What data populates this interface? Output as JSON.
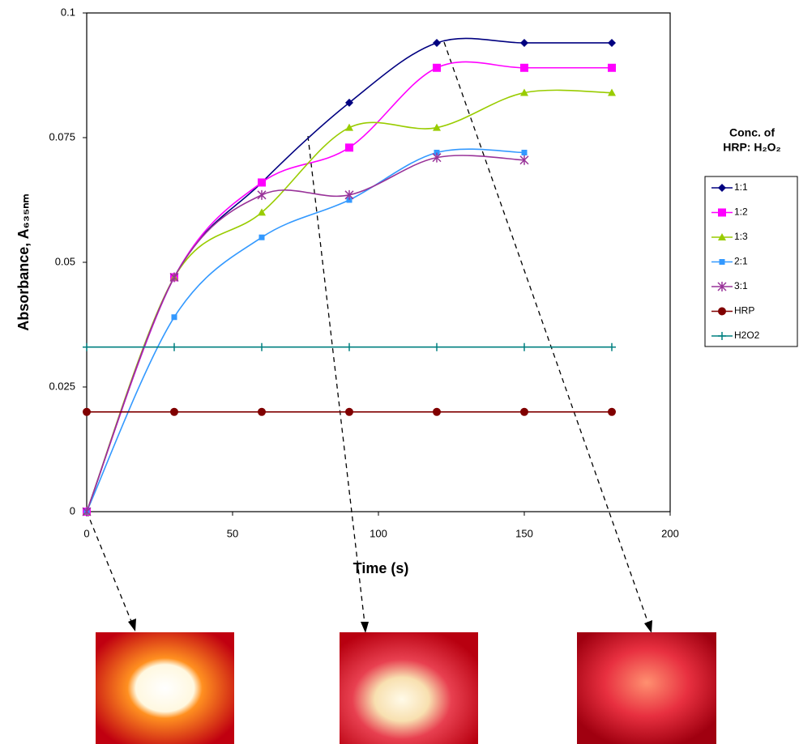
{
  "chart_data": {
    "type": "line",
    "x_label": "Time (s)",
    "y_label": "Absorbance, A₆₃₅ₙₘ",
    "legend_title": [
      "Conc. of",
      "HRP: H₂O₂"
    ],
    "x": [
      0,
      30,
      60,
      90,
      120,
      150,
      180
    ],
    "xlim": [
      0,
      200
    ],
    "xticks": [
      0,
      50,
      100,
      150,
      200
    ],
    "ylim": [
      0,
      0.1
    ],
    "yticks": [
      0,
      0.025,
      0.05,
      0.075,
      0.1
    ],
    "grid": false,
    "legend": "right",
    "series": [
      {
        "name": "1:1",
        "color": "#000080",
        "marker": "diamond",
        "smooth": true,
        "values": [
          0,
          0.047,
          0.066,
          0.082,
          0.094,
          0.094,
          0.094
        ]
      },
      {
        "name": "1:2",
        "color": "#ff00ff",
        "marker": "square",
        "smooth": true,
        "values": [
          0,
          0.047,
          0.066,
          0.073,
          0.089,
          0.089,
          0.089
        ]
      },
      {
        "name": "1:3",
        "color": "#99cc00",
        "marker": "triangle",
        "smooth": true,
        "values": [
          0,
          0.047,
          0.06,
          0.077,
          0.077,
          0.084,
          0.084
        ]
      },
      {
        "name": "2:1",
        "color": "#3399ff",
        "marker": "small-square",
        "smooth": true,
        "values": [
          0,
          0.039,
          0.055,
          0.0625,
          0.072,
          0.072,
          null
        ]
      },
      {
        "name": "3:1",
        "color": "#993399",
        "marker": "star",
        "smooth": true,
        "values": [
          0,
          0.047,
          0.0635,
          0.0635,
          0.071,
          0.0705,
          null
        ]
      },
      {
        "name": "HRP",
        "color": "#800000",
        "marker": "circle",
        "smooth": false,
        "values": [
          0.02,
          0.02,
          0.02,
          0.02,
          0.02,
          0.02,
          0.02
        ]
      },
      {
        "name": "H2O2",
        "color": "#008080",
        "marker": "plus",
        "smooth": false,
        "values": [
          0.033,
          0.033,
          0.033,
          0.033,
          0.033,
          0.033,
          0.033
        ]
      }
    ]
  }
}
